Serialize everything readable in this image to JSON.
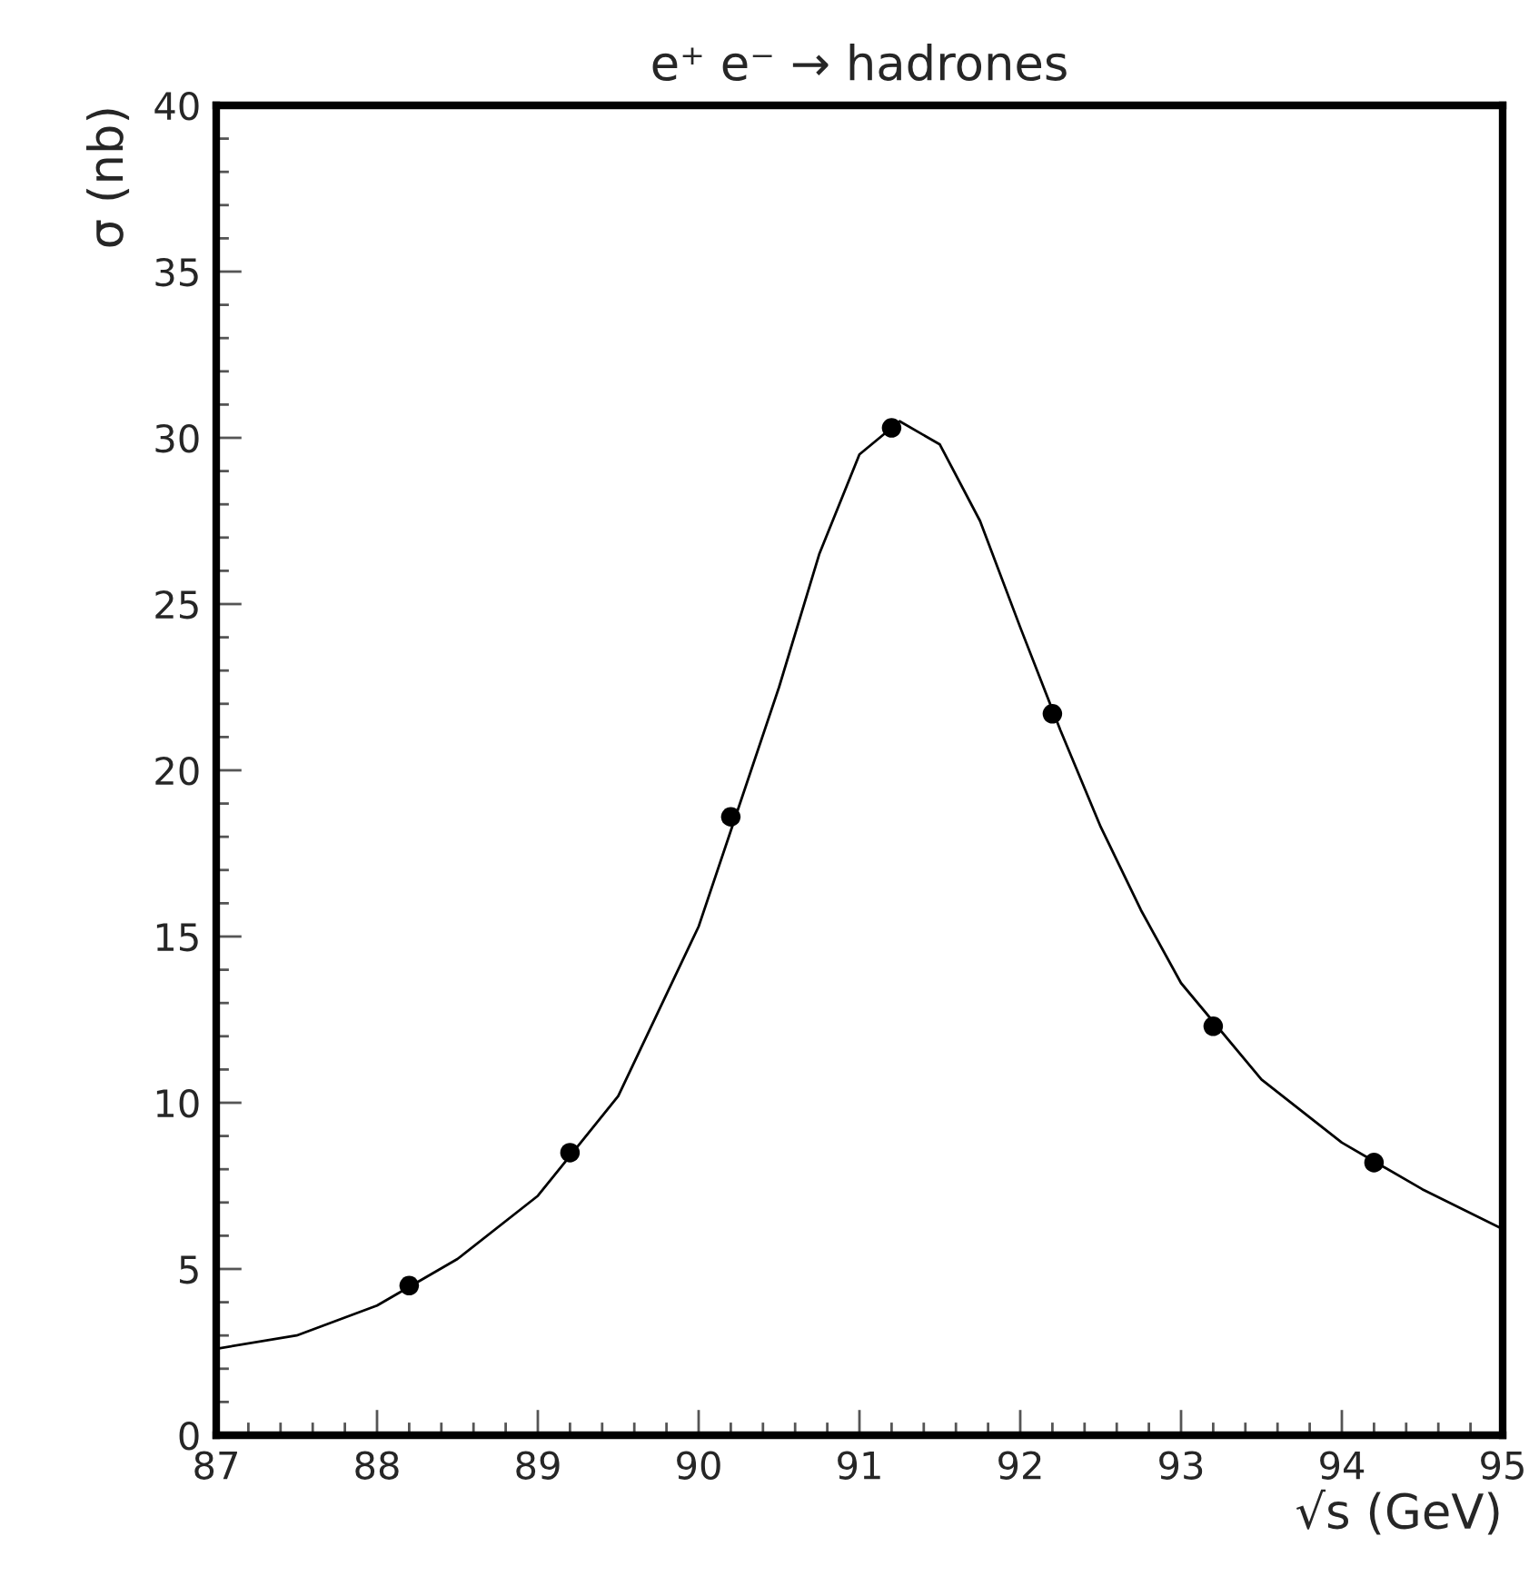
{
  "chart_data": {
    "type": "scatter",
    "title": "e⁺ e⁻ → hadrones",
    "xlabel": "√s (GeV)",
    "ylabel": "σ (nb)",
    "xlim": [
      87,
      95
    ],
    "ylim": [
      0,
      40
    ],
    "xticks": [
      87,
      88,
      89,
      90,
      91,
      92,
      93,
      94,
      95
    ],
    "yticks": [
      0,
      5,
      10,
      15,
      20,
      25,
      30,
      35,
      40
    ],
    "grid": false,
    "legend": false,
    "series": [
      {
        "color": "#000000",
        "marker": "circle",
        "x": [
          88.2,
          89.2,
          90.2,
          91.2,
          92.2,
          93.2,
          94.2
        ],
        "values": [
          4.5,
          8.5,
          18.6,
          30.3,
          21.7,
          12.3,
          8.2
        ]
      },
      {
        "type": "line",
        "color": "#000000",
        "marker": "none",
        "line_style": "solid",
        "x": [
          87,
          87.5,
          88,
          88.5,
          89,
          89.5,
          90,
          90.25,
          90.5,
          90.75,
          91,
          91.25,
          91.5,
          91.75,
          92,
          92.25,
          92.5,
          92.75,
          93,
          93.5,
          94,
          94.5,
          95
        ],
        "values": [
          2.6,
          3.0,
          3.9,
          5.3,
          7.2,
          10.2,
          15.3,
          18.9,
          22.5,
          26.5,
          29.5,
          30.5,
          29.8,
          27.5,
          24.3,
          21.2,
          18.3,
          15.8,
          13.6,
          10.7,
          8.8,
          7.4,
          6.2
        ]
      }
    ]
  }
}
